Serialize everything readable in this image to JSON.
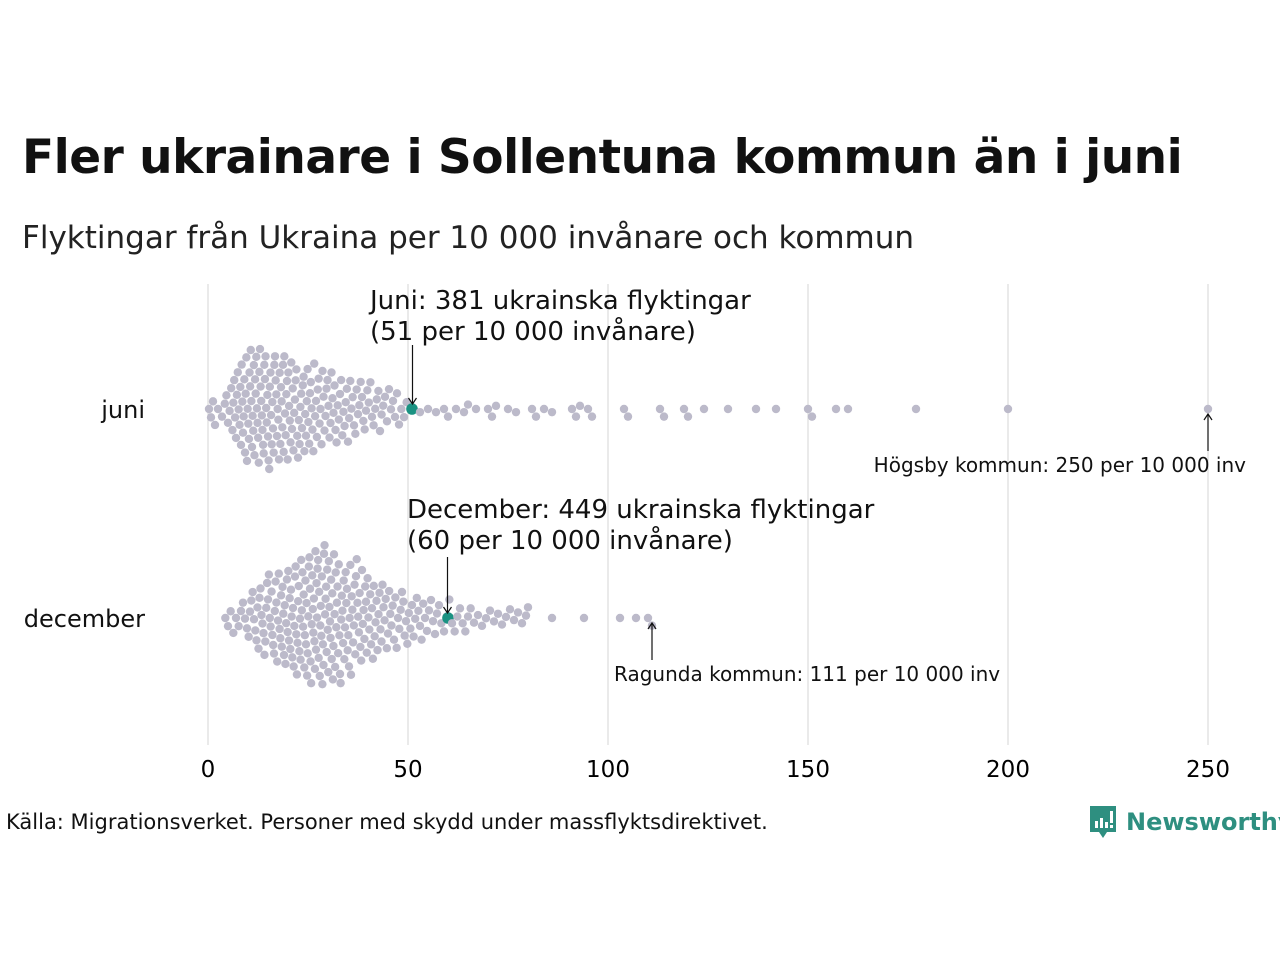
{
  "title": "Fler ukrainare i Sollentuna kommun än i juni",
  "subtitle": "Flyktingar från Ukraina per 10 000 invånare och kommun",
  "source": "Källa: Migrationsverket. Personer med skydd under massflyktsdirektivet.",
  "logo": "Newsworthy",
  "colors": {
    "dot": "#bcbaca",
    "highlight": "#1a9282",
    "grid": "#d4d4d4",
    "brand": "#2e8f80"
  },
  "chart_data": {
    "type": "scatter",
    "subtype": "beeswarm",
    "title": "Flyktingar från Ukraina per 10 000 invånare och kommun",
    "xlabel": "",
    "xlim": [
      0,
      250
    ],
    "xticks": [
      "0",
      "50",
      "100",
      "150",
      "200",
      "250"
    ],
    "grid": true,
    "series": [
      {
        "name": "juni",
        "bin_width": 2,
        "bins": [
          [
            0,
            4
          ],
          [
            2,
            2
          ],
          [
            4,
            5
          ],
          [
            6,
            9
          ],
          [
            8,
            12
          ],
          [
            10,
            13
          ],
          [
            12,
            13
          ],
          [
            14,
            13
          ],
          [
            16,
            12
          ],
          [
            18,
            12
          ],
          [
            20,
            11
          ],
          [
            22,
            10
          ],
          [
            24,
            10
          ],
          [
            26,
            9
          ],
          [
            28,
            8
          ],
          [
            30,
            8
          ],
          [
            32,
            7
          ],
          [
            34,
            7
          ],
          [
            36,
            6
          ],
          [
            38,
            6
          ],
          [
            40,
            5
          ],
          [
            42,
            5
          ],
          [
            44,
            4
          ],
          [
            46,
            4
          ],
          [
            48,
            3
          ]
        ],
        "values": [
          53,
          55,
          57,
          59,
          60,
          62,
          64,
          65,
          67,
          70,
          71,
          72,
          75,
          77,
          81,
          82,
          84,
          86,
          91,
          92,
          93,
          95,
          96,
          104,
          105,
          113,
          114,
          119,
          120,
          124,
          130,
          137,
          142,
          150,
          151,
          157,
          160,
          177,
          200,
          250
        ],
        "highlight": {
          "value": 51,
          "label_line1": "Juni: 381 ukrainska flyktingar",
          "label_line2": "(51 per 10 000 invånare)"
        },
        "annotation": {
          "value": 250,
          "label": "Högsby kommun: 250 per 10 000 inv"
        }
      },
      {
        "name": "december",
        "bin_width": 2,
        "bins": [
          [
            4,
            3
          ],
          [
            6,
            3
          ],
          [
            8,
            4
          ],
          [
            10,
            6
          ],
          [
            12,
            8
          ],
          [
            14,
            9
          ],
          [
            16,
            10
          ],
          [
            18,
            11
          ],
          [
            20,
            12
          ],
          [
            22,
            13
          ],
          [
            24,
            14
          ],
          [
            26,
            15
          ],
          [
            28,
            15
          ],
          [
            30,
            14
          ],
          [
            32,
            13
          ],
          [
            34,
            12
          ],
          [
            36,
            11
          ],
          [
            38,
            10
          ],
          [
            40,
            9
          ],
          [
            42,
            8
          ],
          [
            44,
            7
          ],
          [
            46,
            6
          ],
          [
            48,
            6
          ],
          [
            50,
            5
          ],
          [
            52,
            5
          ],
          [
            54,
            4
          ],
          [
            56,
            4
          ],
          [
            58,
            3
          ],
          [
            60,
            3
          ],
          [
            62,
            3
          ],
          [
            64,
            3
          ],
          [
            66,
            2
          ],
          [
            68,
            2
          ],
          [
            70,
            2
          ],
          [
            72,
            2
          ],
          [
            74,
            2
          ],
          [
            76,
            2
          ],
          [
            78,
            2
          ]
        ],
        "values": [
          80,
          86,
          94,
          103,
          107,
          110,
          111
        ],
        "highlight": {
          "value": 60,
          "label_line1": "December: 449 ukrainska flyktingar",
          "label_line2": "(60 per 10 000 invånare)"
        },
        "annotation": {
          "value": 111,
          "label": "Ragunda kommun: 111 per 10 000 inv"
        }
      }
    ]
  }
}
